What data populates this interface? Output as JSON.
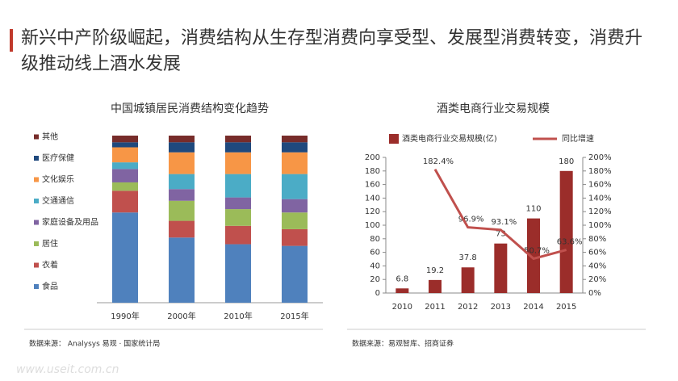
{
  "title": "新兴中产阶级崛起，消费结构从生存型消费向享受型、发展型消费转变，消费升级推动线上酒水发展",
  "chart_data": [
    {
      "type": "stacked_bar",
      "title": "中国城镇居民消费结构变化趋势",
      "categories": [
        "1990年",
        "2000年",
        "2010年",
        "2015年"
      ],
      "series": [
        {
          "name": "食品",
          "color": "#4f81bd",
          "values": [
            54,
            39,
            35,
            34
          ]
        },
        {
          "name": "衣着",
          "color": "#c0504d",
          "values": [
            13,
            10,
            11,
            10
          ]
        },
        {
          "name": "居住",
          "color": "#9bbb59",
          "values": [
            5,
            12,
            10,
            10
          ]
        },
        {
          "name": "家庭设备及用品",
          "color": "#8064a2",
          "values": [
            8,
            7,
            7,
            8
          ]
        },
        {
          "name": "交通通信",
          "color": "#4bacc6",
          "values": [
            4,
            9,
            14,
            15
          ]
        },
        {
          "name": "文化娱乐",
          "color": "#f79646",
          "values": [
            9,
            13,
            13,
            13
          ]
        },
        {
          "name": "医疗保健",
          "color": "#1f497d",
          "values": [
            3,
            6,
            6,
            6
          ]
        },
        {
          "name": "其他",
          "color": "#772c2a",
          "values": [
            4,
            4,
            4,
            4
          ]
        }
      ],
      "source": "数据来源： Analysys 易观 · 国家统计局"
    },
    {
      "type": "bar_line",
      "title": "酒类电商行业交易规模",
      "categories": [
        "2010",
        "2011",
        "2012",
        "2013",
        "2014",
        "2015"
      ],
      "series": [
        {
          "name": "酒类电商行业交易规模(亿)",
          "color": "#9b2d2a",
          "values": [
            6.8,
            19.2,
            37.8,
            73,
            110,
            180
          ]
        },
        {
          "name": "同比增速",
          "color": "#c0504d",
          "axis": "y2",
          "values": [
            null,
            182.4,
            96.9,
            93.1,
            50.7,
            63.6
          ],
          "value_labels": [
            null,
            "182.4%",
            "96.9%",
            "93.1%",
            "50.7%",
            "63.6%"
          ]
        }
      ],
      "ylim": [
        0,
        200
      ],
      "yticks": [
        0,
        20,
        40,
        60,
        80,
        100,
        120,
        140,
        160,
        180,
        200
      ],
      "y2lim": [
        0,
        200
      ],
      "y2ticks": [
        {
          "value": 0,
          "label": "0%"
        },
        {
          "value": 20,
          "label": "20%"
        },
        {
          "value": 40,
          "label": "40%"
        },
        {
          "value": 60,
          "label": "60%"
        },
        {
          "value": 80,
          "label": "80%"
        },
        {
          "value": 100,
          "label": "100%"
        },
        {
          "value": 120,
          "label": "120%"
        },
        {
          "value": 140,
          "label": "140%"
        },
        {
          "value": 160,
          "label": "160%"
        },
        {
          "value": 180,
          "label": "180%"
        },
        {
          "value": 200,
          "label": "200%"
        }
      ],
      "source": "数据来源：易观智库、招商证券"
    }
  ],
  "watermark": "www.useit.com.cn"
}
